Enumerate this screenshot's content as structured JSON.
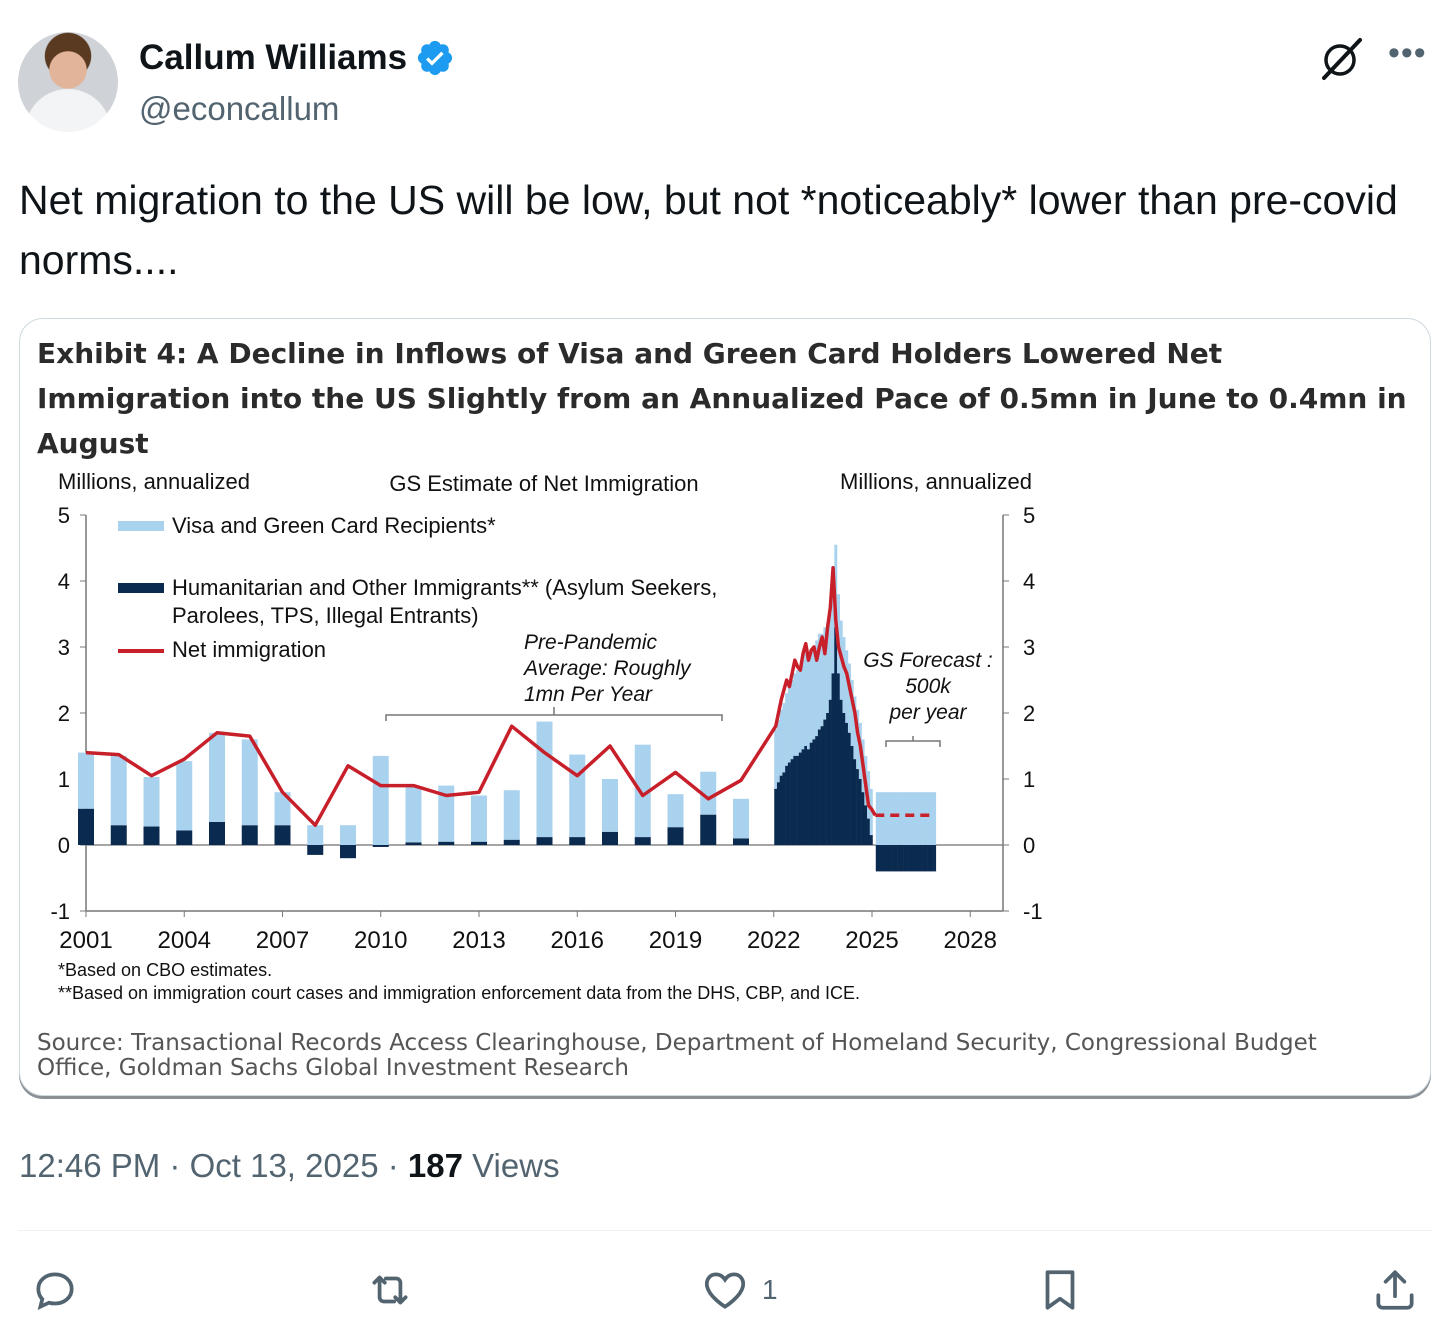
{
  "author": {
    "name": "Callum Williams",
    "handle": "@econcallum",
    "verified_color": "#1d9bf0"
  },
  "tweet": {
    "text": "Net migration to the US will be low, but not *noticeably* lower than pre-covid norms....",
    "time": "12:46 PM",
    "date": "Oct 13, 2025",
    "views_count": "187",
    "views_label": "Views"
  },
  "actions": {
    "reply_count": "",
    "retweet_count": "",
    "like_count": "1",
    "icons": [
      "reply-icon",
      "retweet-icon",
      "like-icon",
      "bookmark-icon",
      "share-icon"
    ]
  },
  "card": {
    "exhibit_title": "Exhibit 4: A Decline in Inflows of Visa and Green Card Holders Lowered Net Immigration into the US Slightly from an Annualized Pace of 0.5mn in June to 0.4mn in August",
    "note1": "*Based on CBO estimates.",
    "note2": "**Based on immigration court cases and immigration enforcement data from the DHS, CBP, and ICE.",
    "source": "Source: Transactional Records Access Clearinghouse, Department of Homeland Security, Congressional Budget Office, Goldman Sachs Global Investment Research"
  },
  "chart_data": {
    "type": "bar",
    "title": "GS Estimate of Net Immigration",
    "ylabel_left": "Millions, annualized",
    "ylabel_right": "Millions, annualized",
    "ylim": [
      -1,
      5
    ],
    "yticks": [
      "-1",
      "0",
      "1",
      "2",
      "3",
      "4",
      "5"
    ],
    "xticks": [
      "2001",
      "2004",
      "2007",
      "2010",
      "2013",
      "2016",
      "2019",
      "2022",
      "2025",
      "2028"
    ],
    "legend": [
      {
        "name": "Visa and Green Card Recipients*",
        "color": "#a9d2ee"
      },
      {
        "name": "Humanitarian and Other Immigrants** (Asylum Seekers, Parolees, TPS, Illegal Entrants)",
        "color": "#0b2a4f"
      },
      {
        "name": "Net immigration",
        "color": "#c8202b"
      }
    ],
    "annotations": {
      "prepandemic": [
        "Pre-Pandemic",
        "Average: Roughly",
        "1mn Per Year"
      ],
      "forecast": [
        "GS Forecast :",
        "500k",
        "per year"
      ]
    },
    "colors": {
      "visa": "#a9d2ee",
      "humanitarian": "#0b2a4f",
      "net": "#c8202b"
    },
    "annual": {
      "years": [
        2001,
        2002,
        2003,
        2004,
        2005,
        2006,
        2007,
        2008,
        2009,
        2010,
        2011,
        2012,
        2013,
        2014,
        2015,
        2016,
        2017,
        2018,
        2019,
        2020,
        2021
      ],
      "visa": [
        0.85,
        1.05,
        0.75,
        1.05,
        1.35,
        1.3,
        0.5,
        0.3,
        0.3,
        1.35,
        0.85,
        0.85,
        0.7,
        0.75,
        1.75,
        1.25,
        0.8,
        1.4,
        0.5,
        0.65,
        0.6
      ],
      "humanitarian": [
        0.55,
        0.3,
        0.28,
        0.22,
        0.35,
        0.3,
        0.3,
        -0.15,
        -0.2,
        -0.03,
        0.04,
        0.05,
        0.05,
        0.08,
        0.12,
        0.12,
        0.2,
        0.12,
        0.27,
        0.46,
        0.1
      ],
      "net": [
        1.4,
        1.37,
        1.05,
        1.3,
        1.7,
        1.65,
        0.8,
        0.3,
        1.2,
        0.9,
        0.9,
        0.75,
        0.8,
        1.8,
        1.4,
        1.05,
        1.5,
        0.75,
        1.1,
        0.7,
        0.98
      ]
    },
    "monthly": {
      "start": 2022.0,
      "visa_base": [
        0.9,
        0.95,
        1.0,
        1.05,
        1.1,
        1.15,
        1.2,
        1.25,
        1.3,
        1.3,
        1.35,
        1.4,
        1.35,
        1.4,
        1.4,
        1.45,
        1.45,
        1.4,
        1.4,
        1.35,
        1.3,
        1.3,
        1.25,
        1.2,
        1.2,
        1.15,
        1.1,
        1.05,
        1.0,
        0.95,
        0.9,
        0.85,
        0.8,
        0.75,
        0.72,
        0.7
      ],
      "humanitarian": [
        0.85,
        0.95,
        1.05,
        1.1,
        1.2,
        1.25,
        1.3,
        1.35,
        1.35,
        1.4,
        1.45,
        1.5,
        1.45,
        1.55,
        1.6,
        1.65,
        1.75,
        1.8,
        1.9,
        2.0,
        2.2,
        2.6,
        3.3,
        2.6,
        2.2,
        2.0,
        1.85,
        1.7,
        1.5,
        1.3,
        1.15,
        1.0,
        0.8,
        0.6,
        0.4,
        0.15
      ],
      "net": [
        1.8,
        2.0,
        2.2,
        2.35,
        2.5,
        2.4,
        2.6,
        2.8,
        2.7,
        2.65,
        2.9,
        3.05,
        2.8,
        2.95,
        3.0,
        2.8,
        3.0,
        3.15,
        2.9,
        3.3,
        3.6,
        4.2,
        3.4,
        3.0,
        2.85,
        2.7,
        2.6,
        2.4,
        2.2,
        2.0,
        1.7,
        1.5,
        1.2,
        0.9,
        0.6,
        0.55
      ]
    },
    "forecast": {
      "start": 2025.1,
      "end": 2026.9,
      "visa": 0.8,
      "humanitarian": -0.4,
      "net": 0.45
    }
  }
}
